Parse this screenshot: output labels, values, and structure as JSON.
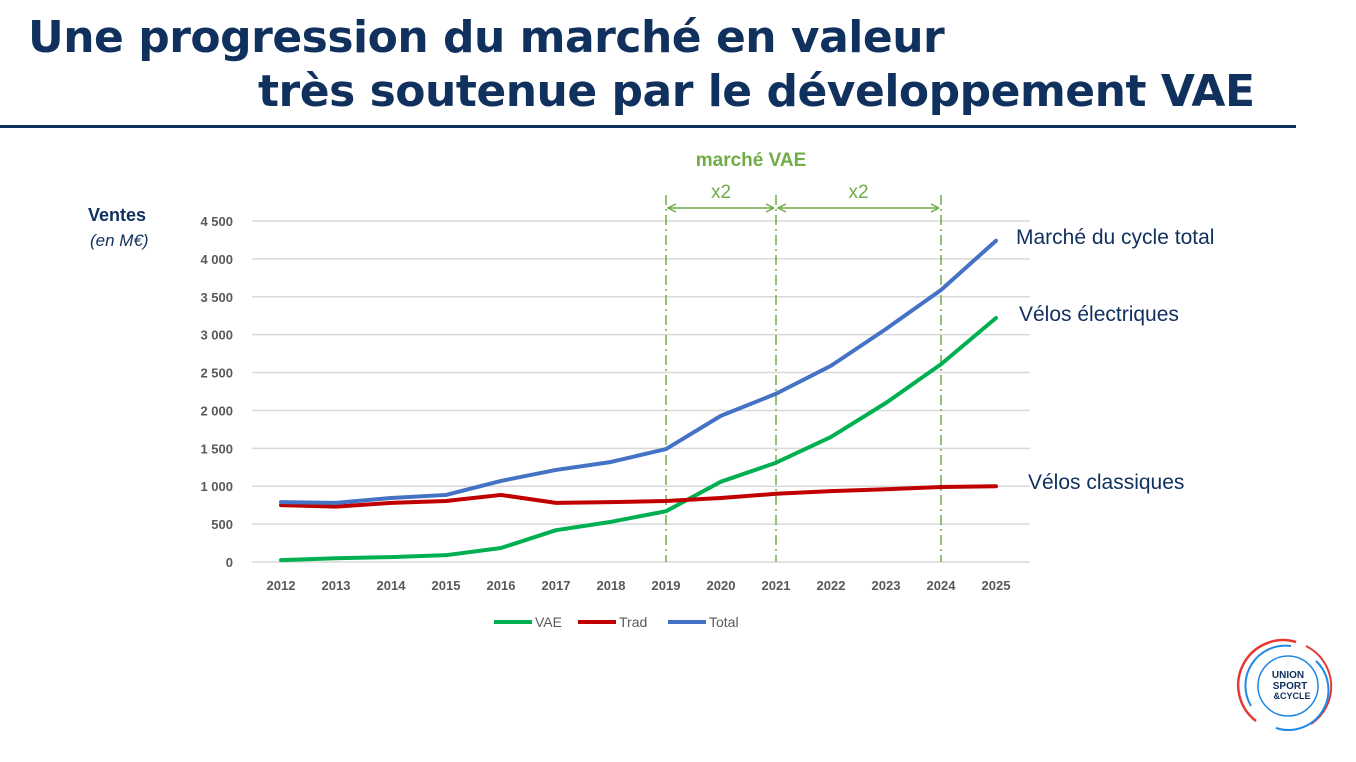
{
  "title_line1": "Une progression du marché en valeur",
  "title_line2": "très soutenue par le développement VAE",
  "logo_text": "UNION SPORT & CYCLE",
  "chart_data": {
    "type": "line",
    "ylabel": "Ventes",
    "yunit": "(en M€)",
    "ylim": [
      0,
      4500
    ],
    "yticks": [
      0,
      500,
      1000,
      1500,
      2000,
      2500,
      3000,
      3500,
      4000,
      4500
    ],
    "ytick_labels": [
      "0",
      "500",
      "1 000",
      "1 500",
      "2 000",
      "2 500",
      "3 000",
      "3 500",
      "4 000",
      "4 500"
    ],
    "grid": true,
    "legend_position": "bottom",
    "categories": [
      "2012",
      "2013",
      "2014",
      "2015",
      "2016",
      "2017",
      "2018",
      "2019",
      "2020",
      "2021",
      "2022",
      "2023",
      "2024",
      "2025"
    ],
    "series": [
      {
        "name": "VAE",
        "color": "#00b050",
        "values": [
          25,
          50,
          65,
          90,
          185,
          420,
          530,
          670,
          1060,
          1310,
          1650,
          2100,
          2610,
          3220
        ]
      },
      {
        "name": "Trad",
        "color": "#c00000",
        "values": [
          750,
          730,
          780,
          805,
          885,
          780,
          790,
          805,
          845,
          900,
          935,
          960,
          990,
          1000
        ]
      },
      {
        "name": "Total",
        "color": "#4472c4",
        "values": [
          790,
          780,
          845,
          885,
          1070,
          1215,
          1320,
          1490,
          1930,
          2220,
          2590,
          3075,
          3590,
          4240
        ]
      }
    ],
    "annotations": {
      "header": "marché VAE",
      "header_color": "#70ad47",
      "markers": [
        "2019",
        "2021",
        "2024"
      ],
      "spans": [
        {
          "from": "2019",
          "to": "2021",
          "label": "x2"
        },
        {
          "from": "2021",
          "to": "2024",
          "label": "x2"
        }
      ],
      "line_labels": [
        "Marché du cycle total",
        "Vélos électriques",
        "Vélos classiques"
      ]
    }
  }
}
